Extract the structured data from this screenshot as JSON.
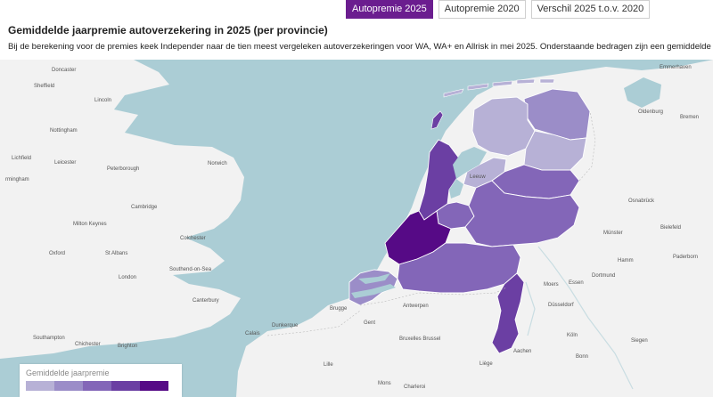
{
  "tabs": [
    {
      "label": "Autopremie 2025",
      "active": true
    },
    {
      "label": "Autopremie 2020",
      "active": false
    },
    {
      "label": "Verschil 2025 t.o.v. 2020",
      "active": false
    }
  ],
  "title": "Gemiddelde jaarpremie autoverzekering in 2025 (per provincie)",
  "subtitle": "Bij de berekening voor de premies keek Independer naar de tien meest vergeleken autoverzekeringen voor WA, WA+ en Allrisk in mei 2025. Onderstaande bedragen zijn een gemiddelde van alle dekkingen geo",
  "legend": {
    "title": "Gemiddelde jaarpremie",
    "colors": [
      "#b7b1d6",
      "#9b8dc8",
      "#8366b8",
      "#6b3fa3",
      "#560a86"
    ]
  },
  "map": {
    "colors": {
      "sea": "#abcdd5",
      "land": "#f2f2f2",
      "border": "#ffffff"
    },
    "cities": [
      "Emmerhaven",
      "Doncaster",
      "Sheffield",
      "Lincoln",
      "Nottingham",
      "Lichfield",
      "Leicester",
      "Peterborough",
      "Norwich",
      "rmingham",
      "Cambridge",
      "Milton Keynes",
      "Colchester",
      "Oxford",
      "St Albans",
      "Southend-on-Sea",
      "London",
      "Canterbury",
      "Southampton",
      "Chichester",
      "Brighton",
      "Calais",
      "Dunkerque",
      "Brugge",
      "Gent",
      "Antwerpen",
      "Bruxelles Brussel",
      "Lille",
      "Mons",
      "Charleroi",
      "Liège",
      "Aachen",
      "Moers",
      "Essen",
      "Düsseldorf",
      "Dortmund",
      "Hamm",
      "Münster",
      "Osnabrück",
      "Bielefeld",
      "Paderborn",
      "Köln",
      "Siegen",
      "Bonn",
      "Oldenburg",
      "Bremen",
      "Leeuw"
    ]
  }
}
